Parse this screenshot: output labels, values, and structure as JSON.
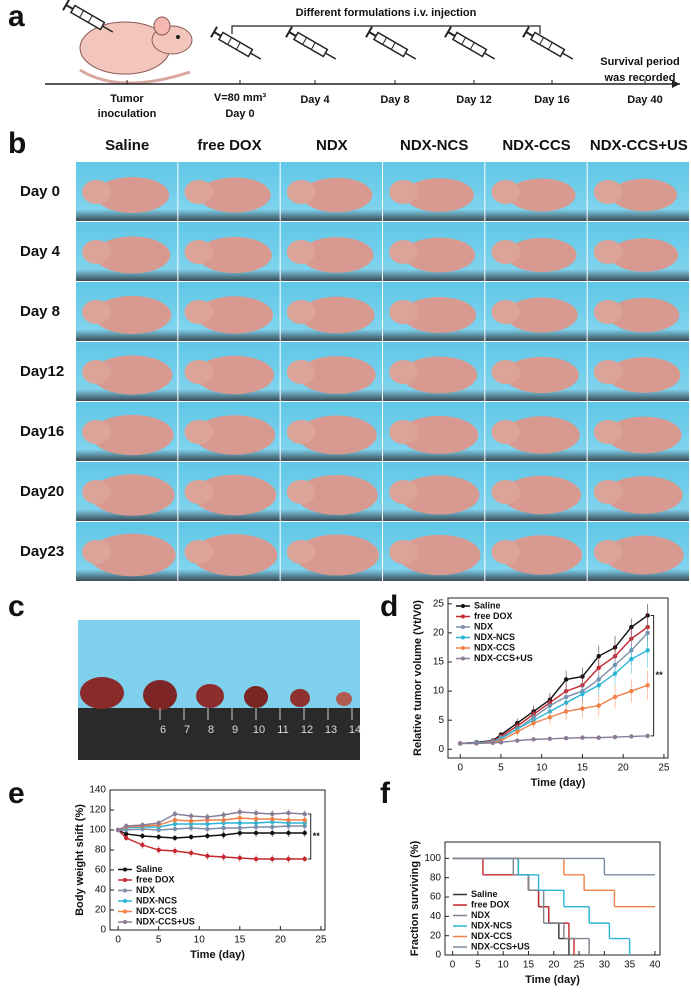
{
  "panel_labels": [
    "a",
    "b",
    "c",
    "d",
    "e",
    "f"
  ],
  "timeline": {
    "banner": "Different formulations i.v. injection",
    "start": [
      "Tumor",
      "inoculation"
    ],
    "events": [
      {
        "top": "V=80 mm³",
        "label": "Day 0"
      },
      {
        "label": "Day 4"
      },
      {
        "label": "Day 8"
      },
      {
        "label": "Day 12"
      },
      {
        "label": "Day 16"
      }
    ],
    "end_note": [
      "Survival period",
      "was recorded"
    ],
    "end": "Day 40"
  },
  "photos": {
    "columns": [
      "Saline",
      "free DOX",
      "NDX",
      "NDX-NCS",
      "NDX-CCS",
      "NDX-CCS+US"
    ],
    "rows": [
      "Day 0",
      "Day 4",
      "Day 8",
      "Day12",
      "Day16",
      "Day20",
      "Day23"
    ]
  },
  "ruler": [
    "6",
    "7",
    "8",
    "9",
    "10",
    "11",
    "12",
    "13",
    "14"
  ],
  "chart_data": [
    {
      "type": "line",
      "xlabel": "Time (day)",
      "ylabel": "Relative tumor volume (Vt/V0)",
      "x": [
        0,
        2,
        4,
        5,
        7,
        9,
        11,
        13,
        15,
        17,
        19,
        21,
        23
      ],
      "xlim": [
        -1.5,
        25.5
      ],
      "ylim": [
        -1.5,
        26
      ],
      "xticks": [
        0,
        5,
        10,
        15,
        20,
        25
      ],
      "yticks": [
        0,
        5,
        10,
        15,
        20,
        25
      ],
      "legend": "upper left",
      "annotation": "**",
      "series": [
        {
          "name": "Saline",
          "color": "#111111",
          "values": [
            1,
            1.2,
            1.5,
            2.5,
            4.5,
            6.5,
            8.5,
            12,
            12.5,
            16,
            17.5,
            21,
            23
          ],
          "errors": [
            0.2,
            0.3,
            0.4,
            0.5,
            0.8,
            1,
            1.2,
            1.5,
            1.6,
            1.8,
            2,
            1.5,
            2
          ]
        },
        {
          "name": "free DOX",
          "color": "#c4272e",
          "values": [
            1,
            1.1,
            1.4,
            2.2,
            4,
            6,
            8,
            10,
            11,
            14,
            16,
            19,
            21
          ],
          "errors": [
            0.2,
            0.3,
            0.4,
            0.5,
            0.8,
            1,
            1.2,
            1.5,
            1.6,
            1.8,
            2,
            2,
            2.5
          ]
        },
        {
          "name": "NDX",
          "color": "#7d8ea8",
          "values": [
            1,
            1.1,
            1.3,
            2,
            3.5,
            5.5,
            7.5,
            9,
            10,
            12,
            14.5,
            17,
            20
          ],
          "errors": [
            0.2,
            0.3,
            0.4,
            0.5,
            0.8,
            1,
            1.2,
            1.5,
            1.6,
            1.8,
            2,
            2.5,
            2.5
          ]
        },
        {
          "name": "NDX-NCS",
          "color": "#2ab5d6",
          "values": [
            1,
            1.1,
            1.3,
            1.8,
            3.5,
            5,
            6.5,
            8,
            9.5,
            11,
            13,
            15.5,
            17
          ],
          "errors": [
            0.2,
            0.3,
            0.4,
            0.5,
            0.8,
            1,
            1.2,
            1.5,
            1.6,
            1.8,
            2,
            2.5,
            3
          ]
        },
        {
          "name": "NDX-CCS",
          "color": "#f08048",
          "values": [
            1,
            1,
            1.2,
            1.5,
            3,
            4.5,
            5.5,
            6.5,
            7,
            7.5,
            9,
            10,
            11
          ],
          "errors": [
            0.2,
            0.3,
            0.4,
            0.5,
            0.8,
            1,
            1.2,
            1.5,
            1.6,
            1.8,
            2,
            2,
            2.5
          ]
        },
        {
          "name": "NDX-CCS+US",
          "color": "#8a7c98",
          "values": [
            1,
            1,
            1.1,
            1.2,
            1.5,
            1.7,
            1.8,
            1.9,
            2,
            2,
            2.1,
            2.2,
            2.3
          ],
          "errors": [
            0.1,
            0.1,
            0.2,
            0.2,
            0.3,
            0.3,
            0.3,
            0.4,
            0.4,
            0.4,
            0.4,
            0.4,
            0.4
          ]
        }
      ]
    },
    {
      "type": "line",
      "xlabel": "Time (day)",
      "ylabel": "Body weight shift (%)",
      "x": [
        0,
        1,
        3,
        5,
        7,
        9,
        11,
        13,
        15,
        17,
        19,
        21,
        23
      ],
      "xlim": [
        -1,
        25.5
      ],
      "ylim": [
        0,
        140
      ],
      "xticks": [
        0,
        5,
        10,
        15,
        20,
        25
      ],
      "yticks": [
        0,
        20,
        40,
        60,
        80,
        100,
        120,
        140
      ],
      "legend": "lower left",
      "annotation": "**",
      "series": [
        {
          "name": "Saline",
          "color": "#111111",
          "values": [
            100,
            96,
            94,
            93,
            92,
            93,
            94,
            95,
            97,
            97,
            97,
            97,
            97
          ],
          "errors": [
            2,
            3,
            3,
            3,
            3,
            3,
            3,
            4,
            4,
            4,
            4,
            4,
            4
          ]
        },
        {
          "name": "free DOX",
          "color": "#c4272e",
          "values": [
            100,
            92,
            85,
            80,
            79,
            77,
            74,
            73,
            72,
            71,
            71,
            71,
            71
          ],
          "errors": [
            2,
            3,
            4,
            4,
            4,
            4,
            4,
            4,
            4,
            4,
            4,
            4,
            3
          ]
        },
        {
          "name": "NDX",
          "color": "#7d8ea8",
          "values": [
            100,
            100,
            101,
            100,
            101,
            102,
            101,
            102,
            102,
            103,
            103,
            104,
            104
          ],
          "errors": [
            2,
            3,
            3,
            3,
            4,
            4,
            4,
            4,
            4,
            4,
            4,
            4,
            4
          ]
        },
        {
          "name": "NDX-NCS",
          "color": "#2ab5d6",
          "values": [
            100,
            102,
            103,
            103,
            106,
            106,
            106,
            107,
            107,
            107,
            108,
            107,
            107
          ],
          "errors": [
            2,
            3,
            3,
            3,
            4,
            4,
            4,
            4,
            4,
            4,
            4,
            4,
            4
          ]
        },
        {
          "name": "NDX-CCS",
          "color": "#f08048",
          "values": [
            100,
            103,
            104,
            105,
            110,
            109,
            110,
            110,
            112,
            111,
            111,
            110,
            110
          ],
          "errors": [
            2,
            3,
            3,
            3,
            4,
            4,
            4,
            4,
            4,
            4,
            4,
            4,
            4
          ]
        },
        {
          "name": "NDX-CCS+US",
          "color": "#8a7c98",
          "values": [
            100,
            104,
            105,
            107,
            116,
            114,
            113,
            115,
            118,
            117,
            116,
            117,
            116
          ],
          "errors": [
            2,
            3,
            3,
            3,
            4,
            4,
            4,
            4,
            4,
            4,
            4,
            4,
            4
          ]
        }
      ]
    },
    {
      "type": "step",
      "xlabel": "Time (day)",
      "ylabel": "Fraction surviving (%)",
      "xlim": [
        -1.5,
        41
      ],
      "ylim": [
        0,
        117
      ],
      "xticks": [
        0,
        5,
        10,
        15,
        20,
        25,
        30,
        35,
        40
      ],
      "yticks": [
        0,
        20,
        40,
        60,
        80,
        100
      ],
      "legend": "lower left",
      "series": [
        {
          "name": "Saline",
          "color": "#333333",
          "x": [
            0,
            13,
            15,
            17,
            19,
            21,
            23
          ],
          "values": [
            100,
            83,
            67,
            50,
            33,
            17,
            0
          ]
        },
        {
          "name": "free DOX",
          "color": "#c4272e",
          "x": [
            0,
            6,
            15,
            17,
            19,
            23,
            24
          ],
          "values": [
            100,
            83,
            67,
            50,
            33,
            17,
            0
          ]
        },
        {
          "name": "NDX",
          "color": "#7d8590",
          "x": [
            0,
            12,
            15,
            18,
            22,
            27
          ],
          "values": [
            100,
            83,
            67,
            33,
            17,
            0
          ]
        },
        {
          "name": "NDX-NCS",
          "color": "#2ab5d6",
          "x": [
            0,
            13,
            17,
            22,
            27,
            31,
            35
          ],
          "values": [
            100,
            83,
            67,
            50,
            33,
            17,
            0
          ]
        },
        {
          "name": "NDX-CCS",
          "color": "#f08048",
          "x": [
            0,
            22,
            26,
            32,
            40
          ],
          "values": [
            100,
            83,
            67,
            50,
            50
          ]
        },
        {
          "name": "NDX-CCS+US",
          "color": "#7a8aa0",
          "x": [
            0,
            30,
            40
          ],
          "values": [
            100,
            83,
            83
          ]
        }
      ]
    }
  ]
}
